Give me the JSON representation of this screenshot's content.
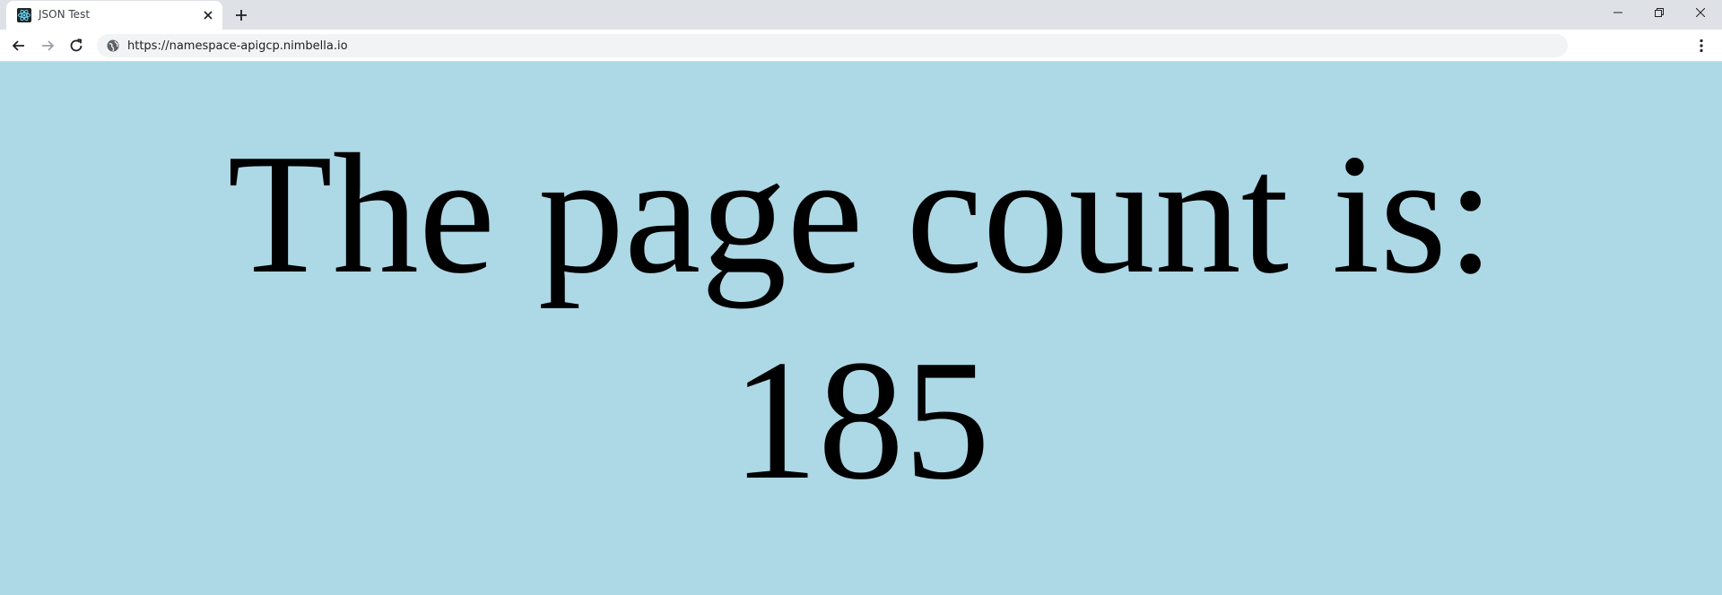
{
  "browser": {
    "tab": {
      "title": "JSON Test",
      "favicon": "react-atom-icon"
    },
    "address_bar": {
      "url": "https://namespace-apigcp.nimbella.io"
    }
  },
  "page": {
    "background_color": "#add8e6",
    "heading_label": "The page count is:",
    "page_count": "185"
  }
}
